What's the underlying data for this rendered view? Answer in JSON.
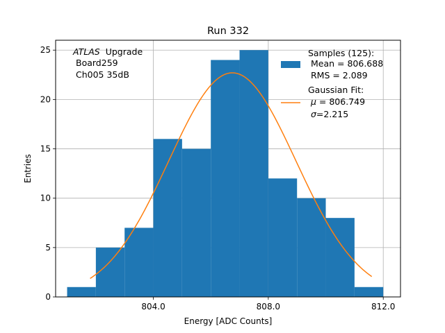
{
  "chart_data": {
    "type": "bar",
    "title": "Run 332",
    "xlabel": "Energy [ADC Counts]",
    "ylabel": "Entries",
    "xlim": [
      800.6,
      812.6
    ],
    "ylim": [
      0,
      26
    ],
    "grid": true,
    "bin_edges": [
      801,
      802,
      803,
      804,
      805,
      806,
      807,
      808,
      809,
      810,
      811,
      812
    ],
    "values": [
      1,
      5,
      7,
      16,
      15,
      24,
      25,
      12,
      10,
      8,
      1
    ],
    "x_ticks": [
      804,
      808,
      812
    ],
    "x_tick_labels": [
      "804.0",
      "808.0",
      "812.0"
    ],
    "y_ticks": [
      0,
      5,
      10,
      15,
      20,
      25
    ],
    "y_tick_labels": [
      "0",
      "5",
      "10",
      "15",
      "20",
      "25"
    ],
    "fit": {
      "mu": 806.749,
      "sigma": 2.215,
      "amplitude": 22.7,
      "x_range": [
        801.8,
        811.6
      ]
    },
    "annotation": {
      "experiment": "ATLAS",
      "lines": [
        "Upgrade",
        "Board259",
        "Ch005 35dB"
      ]
    },
    "legend": {
      "position": "top-right",
      "samples": [
        "Samples (125):",
        "Mean = 806.688",
        "RMS = 2.089"
      ],
      "fit_title": "Gaussian Fit:",
      "fit_mu_symbol": "μ",
      "fit_mu_text": " = 806.749",
      "fit_sigma_symbol": "σ",
      "fit_sigma_text": "=2.215"
    },
    "colors": {
      "bars": "#1f77b4",
      "fit": "#ff7f0e",
      "grid": "#b0b0b0"
    }
  }
}
